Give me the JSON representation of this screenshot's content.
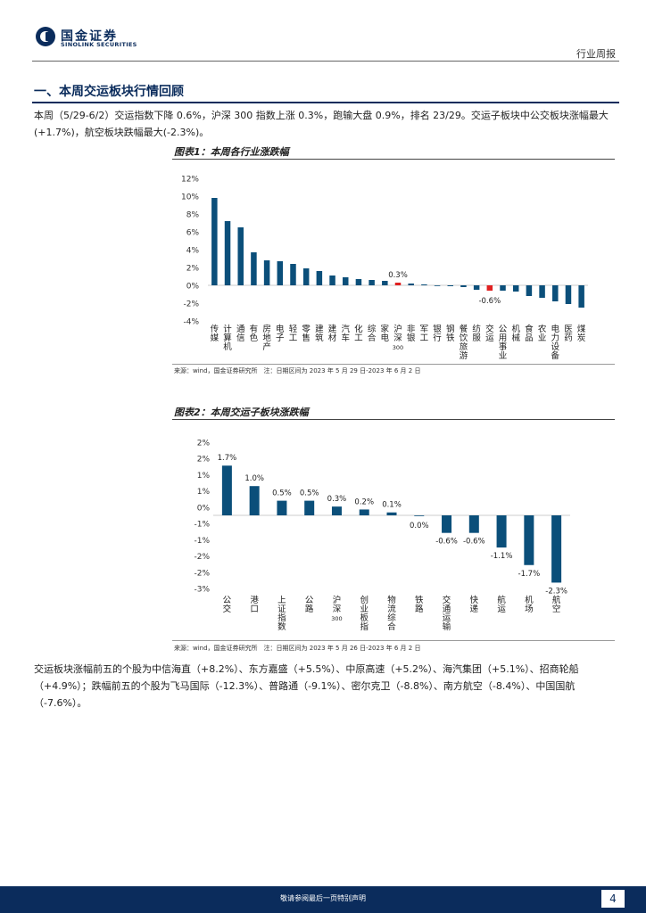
{
  "header": {
    "logo_cn": "国金证券",
    "logo_en": "SINOLINK SECURITIES",
    "report_type": "行业周报"
  },
  "section": {
    "title": "一、本周交运板块行情回顾"
  },
  "paragraph1": "本周（5/29-6/2）交运指数下降 0.6%，沪深 300 指数上涨 0.3%，跑输大盘 0.9%，排名 23/29。交运子板块中公交板块涨幅最大(+1.7%)，航空板块跌幅最大(-2.3%)。",
  "paragraph2": "交运板块涨幅前五的个股为中信海直（+8.2%）、东方嘉盛（+5.5%）、中原高速（+5.2%）、海汽集团（+5.1%）、招商轮船（+4.9%）；跌幅前五的个股为飞马国际（-12.3%）、普路通（-9.1%）、密尔克卫（-8.8%）、南方航空（-8.4%）、中国国航（-7.6%）。",
  "figure1": {
    "title": "图表1：本周各行业涨跌幅",
    "source": "来源：wind，国金证券研究所　注：日期区间为 2023 年 5 月 29 日-2023 年 6 月 2 日"
  },
  "figure2": {
    "title": "图表2：本周交运子板块涨跌幅",
    "source": "来源：wind，国金证券研究所　注：日期区间为 2023 年 5 月 26 日-2023 年 6 月 2 日"
  },
  "colors": {
    "bar": "#0b4f7a",
    "highlight": "#e02020",
    "brand": "#0b2c5c"
  },
  "chart_data": [
    {
      "type": "bar",
      "title": "图表1：本周各行业涨跌幅",
      "categories": [
        "传媒",
        "计算机",
        "通信",
        "有色",
        "房地产",
        "电子",
        "轻工",
        "零售",
        "建筑",
        "建材",
        "汽车",
        "化工",
        "综合",
        "家电",
        "沪深300",
        "非银",
        "军工",
        "银行",
        "钢铁",
        "餐饮旅游",
        "纺服",
        "交运",
        "公用事业",
        "机械",
        "食品",
        "农业",
        "电力设备",
        "医药",
        "煤炭"
      ],
      "values": [
        9.8,
        7.2,
        6.5,
        3.7,
        2.8,
        2.7,
        2.4,
        1.9,
        1.6,
        1.1,
        0.9,
        0.7,
        0.6,
        0.5,
        0.3,
        0.2,
        0.1,
        0.0,
        -0.1,
        -0.2,
        -0.5,
        -0.6,
        -0.6,
        -0.7,
        -1.2,
        -1.4,
        -1.8,
        -2.1,
        -2.5
      ],
      "highlight": [
        "沪深300",
        "交运"
      ],
      "data_labels": {
        "沪深300": "0.3%",
        "交运": "-0.6%"
      },
      "yticks": [
        "12%",
        "10%",
        "8%",
        "6%",
        "4%",
        "2%",
        "0%",
        "-2%",
        "-4%"
      ],
      "ylim": [
        -4,
        12
      ],
      "xlabel": "",
      "ylabel": ""
    },
    {
      "type": "bar",
      "title": "图表2：本周交运子板块涨跌幅",
      "categories": [
        "公交",
        "港口",
        "上证指数",
        "公路",
        "沪深300",
        "创业板指",
        "物流综合",
        "铁路",
        "交通运输",
        "快递",
        "航运",
        "机场",
        "航空"
      ],
      "values": [
        1.7,
        1.0,
        0.5,
        0.5,
        0.3,
        0.2,
        0.1,
        0.0,
        -0.6,
        -0.6,
        -1.1,
        -1.7,
        -2.3
      ],
      "data_labels": [
        "1.7%",
        "1.0%",
        "0.5%",
        "0.5%",
        "0.3%",
        "0.2%",
        "0.1%",
        "0.0%",
        "-0.6%",
        "-0.6%",
        "-1.1%",
        "-1.7%",
        "-2.3%"
      ],
      "yticks": [
        "2%",
        "2%",
        "1%",
        "1%",
        "0%",
        "-1%",
        "-1%",
        "-2%",
        "-2%",
        "-3%"
      ],
      "ylim": [
        -2.5,
        2.5
      ],
      "xlabel": "",
      "ylabel": ""
    }
  ],
  "footer": {
    "disclaimer": "敬请参阅最后一页特别声明",
    "page_number": "4"
  }
}
